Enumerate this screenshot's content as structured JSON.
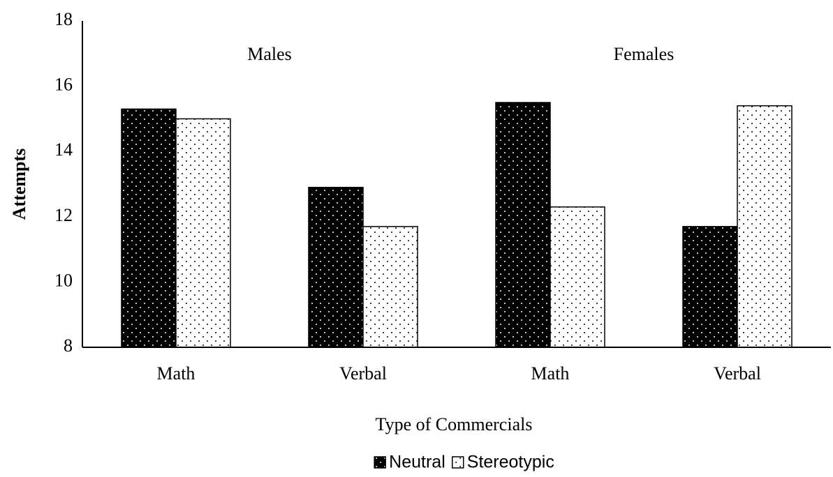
{
  "chart_data": {
    "type": "bar",
    "categories": [
      "Math",
      "Verbal",
      "Math",
      "Verbal"
    ],
    "series": [
      {
        "name": "Neutral",
        "color": "#000000",
        "values": [
          15.3,
          12.9,
          15.5,
          11.7
        ]
      },
      {
        "name": "Stereotypic",
        "color": "#ffffff",
        "values": [
          15.0,
          11.7,
          12.3,
          15.4
        ]
      }
    ],
    "annotations": [
      "Males",
      "Females"
    ],
    "xlabel": "Type of Commercials",
    "ylabel": "Attempts",
    "ylim": [
      8,
      18
    ],
    "yticks": [
      8,
      10,
      12,
      14,
      16,
      18
    ],
    "grid": false,
    "legend": "bottom"
  }
}
